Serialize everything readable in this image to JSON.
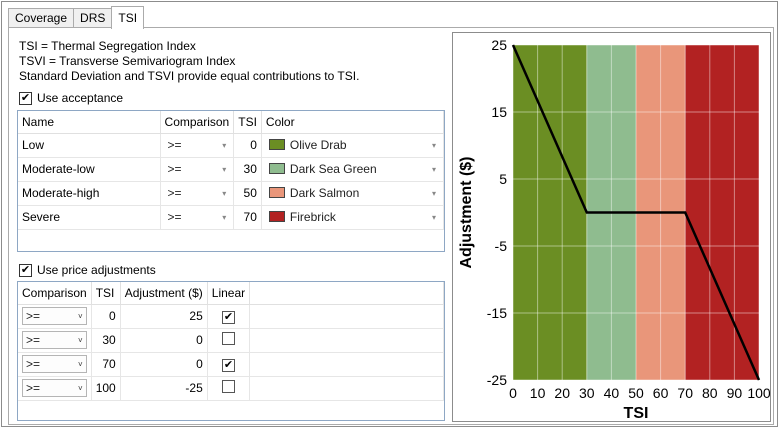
{
  "tabs": [
    {
      "label": "Coverage",
      "active": false
    },
    {
      "label": "DRS",
      "active": false
    },
    {
      "label": "TSI",
      "active": true
    }
  ],
  "description": [
    "TSI = Thermal Segregation Index",
    "TSVI = Transverse Semivariogram Index",
    "Standard Deviation and TSVI provide equal contributions to TSI."
  ],
  "acceptance": {
    "checkbox_label": "Use acceptance",
    "checked": true,
    "headers": [
      "Name",
      "Comparison",
      "TSI",
      "Color"
    ],
    "rows": [
      {
        "name": "Low",
        "comparison": ">=",
        "tsi": "0",
        "color_name": "Olive Drab",
        "color": "#6b8e23"
      },
      {
        "name": "Moderate-low",
        "comparison": ">=",
        "tsi": "30",
        "color_name": "Dark Sea Green",
        "color": "#8fbc8f"
      },
      {
        "name": "Moderate-high",
        "comparison": ">=",
        "tsi": "50",
        "color_name": "Dark Salmon",
        "color": "#e9967a"
      },
      {
        "name": "Severe",
        "comparison": ">=",
        "tsi": "70",
        "color_name": "Firebrick",
        "color": "#b22222"
      }
    ]
  },
  "price": {
    "checkbox_label": "Use price adjustments",
    "checked": true,
    "headers": [
      "Comparison",
      "TSI",
      "Adjustment ($)",
      "Linear"
    ],
    "rows": [
      {
        "comparison": ">=",
        "tsi": "0",
        "adjustment": "25",
        "linear": true
      },
      {
        "comparison": ">=",
        "tsi": "30",
        "adjustment": "0",
        "linear": false
      },
      {
        "comparison": ">=",
        "tsi": "70",
        "adjustment": "0",
        "linear": true
      },
      {
        "comparison": ">=",
        "tsi": "100",
        "adjustment": "-25",
        "linear": false
      }
    ]
  },
  "chart_data": {
    "type": "line",
    "xlabel": "TSI",
    "ylabel": "Adjustment ($)",
    "xlim": [
      0,
      100
    ],
    "ylim": [
      -25,
      25
    ],
    "x_ticks": [
      "0",
      "10",
      "20",
      "30",
      "40",
      "50",
      "60",
      "70",
      "80",
      "90",
      "100"
    ],
    "y_ticks": [
      "25",
      "15",
      "5",
      "-5",
      "-15",
      "-25"
    ],
    "bands": [
      {
        "from": 0,
        "to": 30,
        "color": "#6b8e23"
      },
      {
        "from": 30,
        "to": 50,
        "color": "#8fbc8f"
      },
      {
        "from": 50,
        "to": 70,
        "color": "#e9967a"
      },
      {
        "from": 70,
        "to": 100,
        "color": "#b22222"
      }
    ],
    "grid": true,
    "series": [
      {
        "x": [
          0,
          30,
          70,
          100
        ],
        "y": [
          25,
          0,
          0,
          -25
        ],
        "color": "#000000"
      }
    ]
  }
}
